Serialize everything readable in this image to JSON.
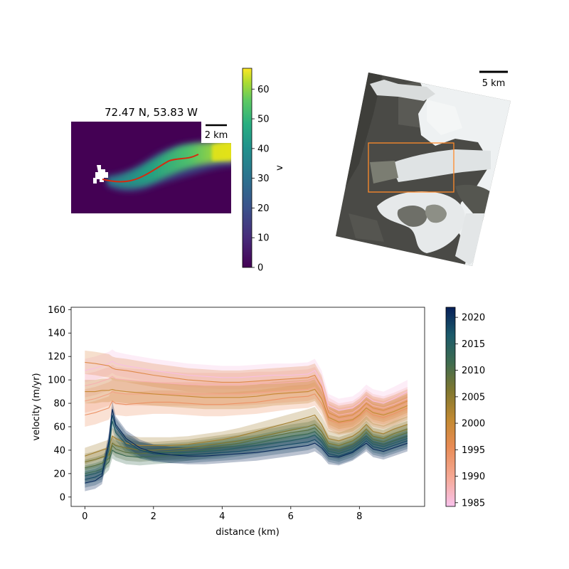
{
  "velocity_map": {
    "title": "72.47 N, 53.83 W",
    "scalebar_label": "2 km",
    "colorbar": {
      "label": "v",
      "ticks": [
        0,
        10,
        20,
        30,
        40,
        50,
        60
      ],
      "range": [
        0,
        67
      ],
      "colormap": "viridis"
    },
    "profile_line_color": "#d62a0e"
  },
  "satellite_map": {
    "scalebar_label": "5 km",
    "box_color": "#ff8a2a"
  },
  "chart_data": {
    "type": "line",
    "xlabel": "distance (km)",
    "ylabel": "velocity (m/yr)",
    "xlim": [
      -0.4,
      9.9
    ],
    "ylim": [
      -8,
      162
    ],
    "xticks": [
      0,
      2,
      4,
      6,
      8
    ],
    "yticks": [
      0,
      20,
      40,
      60,
      80,
      100,
      120,
      140,
      160
    ],
    "grid": false,
    "colorbar": {
      "ticks": [
        1985,
        1990,
        1995,
        2000,
        2005,
        2010,
        2015,
        2020
      ],
      "range": [
        1984.3,
        2021.9
      ],
      "colormap": "batlow-like (pink to navy)"
    },
    "x": [
      0,
      0.3,
      0.5,
      0.7,
      0.8,
      0.9,
      1.2,
      1.6,
      2.0,
      2.5,
      3.0,
      3.5,
      4.0,
      4.5,
      5.0,
      5.5,
      6.0,
      6.5,
      6.7,
      6.9,
      7.1,
      7.4,
      7.8,
      8.0,
      8.2,
      8.4,
      8.7,
      9.0,
      9.4
    ],
    "series": [
      {
        "year": 1985,
        "values": [
          108,
          110,
          112,
          114,
          116,
          114,
          112,
          110,
          108,
          106,
          104,
          103,
          102,
          102,
          103,
          104,
          104,
          105,
          108,
          98,
          78,
          74,
          76,
          80,
          86,
          82,
          80,
          84,
          90
        ]
      },
      {
        "year": 1988,
        "values": [
          95,
          97,
          99,
          101,
          103,
          101,
          100,
          99,
          98,
          97,
          96,
          96,
          96,
          96,
          97,
          97,
          98,
          99,
          101,
          92,
          75,
          70,
          72,
          76,
          82,
          78,
          76,
          79,
          84
        ]
      },
      {
        "year": 1991,
        "values": [
          82,
          84,
          86,
          88,
          90,
          89,
          88,
          88,
          88,
          88,
          88,
          88,
          88,
          88,
          89,
          90,
          91,
          92,
          94,
          86,
          70,
          66,
          68,
          72,
          78,
          74,
          72,
          75,
          80
        ]
      },
      {
        "year": 1994,
        "values": [
          70,
          72,
          74,
          76,
          82,
          80,
          79,
          80,
          81,
          81,
          80,
          79,
          79,
          80,
          81,
          83,
          85,
          86,
          88,
          80,
          66,
          63,
          65,
          69,
          74,
          70,
          68,
          71,
          76
        ]
      },
      {
        "year": 1997,
        "values": [
          115,
          114,
          113,
          112,
          110,
          109,
          108,
          106,
          104,
          102,
          100,
          99,
          98,
          98,
          99,
          100,
          101,
          102,
          104,
          94,
          72,
          68,
          70,
          74,
          80,
          76,
          74,
          77,
          82
        ]
      },
      {
        "year": 2000,
        "values": [
          90,
          90,
          91,
          91,
          92,
          91,
          90,
          89,
          88,
          87,
          86,
          85,
          85,
          85,
          86,
          88,
          89,
          90,
          92,
          84,
          68,
          64,
          66,
          70,
          76,
          72,
          70,
          73,
          78
        ]
      },
      {
        "year": 2003,
        "values": [
          35,
          38,
          40,
          42,
          52,
          50,
          46,
          44,
          44,
          44,
          45,
          47,
          49,
          52,
          56,
          60,
          64,
          68,
          70,
          62,
          50,
          48,
          52,
          56,
          62,
          56,
          54,
          58,
          62
        ]
      },
      {
        "year": 2006,
        "values": [
          30,
          32,
          34,
          36,
          46,
          44,
          42,
          40,
          40,
          41,
          42,
          44,
          46,
          48,
          51,
          54,
          57,
          60,
          62,
          56,
          46,
          44,
          48,
          52,
          58,
          52,
          50,
          54,
          58
        ]
      },
      {
        "year": 2009,
        "values": [
          25,
          27,
          29,
          33,
          44,
          41,
          38,
          37,
          38,
          39,
          40,
          42,
          44,
          46,
          49,
          52,
          55,
          57,
          59,
          53,
          43,
          41,
          45,
          49,
          55,
          49,
          47,
          51,
          55
        ]
      },
      {
        "year": 2012,
        "values": [
          20,
          22,
          24,
          30,
          40,
          38,
          35,
          34,
          35,
          36,
          38,
          40,
          42,
          44,
          46,
          49,
          52,
          54,
          56,
          50,
          41,
          39,
          43,
          47,
          52,
          47,
          45,
          48,
          52
        ]
      },
      {
        "year": 2015,
        "values": [
          18,
          20,
          22,
          40,
          65,
          55,
          45,
          40,
          38,
          38,
          38,
          39,
          40,
          42,
          44,
          46,
          48,
          51,
          53,
          47,
          39,
          37,
          41,
          45,
          50,
          45,
          43,
          46,
          50
        ]
      },
      {
        "year": 2018,
        "values": [
          15,
          17,
          20,
          45,
          70,
          60,
          48,
          40,
          37,
          36,
          36,
          37,
          38,
          39,
          41,
          43,
          45,
          47,
          49,
          44,
          37,
          35,
          39,
          43,
          48,
          43,
          41,
          44,
          48
        ]
      },
      {
        "year": 2021,
        "values": [
          12,
          14,
          18,
          48,
          75,
          62,
          50,
          42,
          38,
          36,
          35,
          35,
          36,
          37,
          38,
          40,
          42,
          44,
          46,
          42,
          35,
          34,
          38,
          42,
          46,
          41,
          39,
          42,
          46
        ]
      }
    ]
  }
}
